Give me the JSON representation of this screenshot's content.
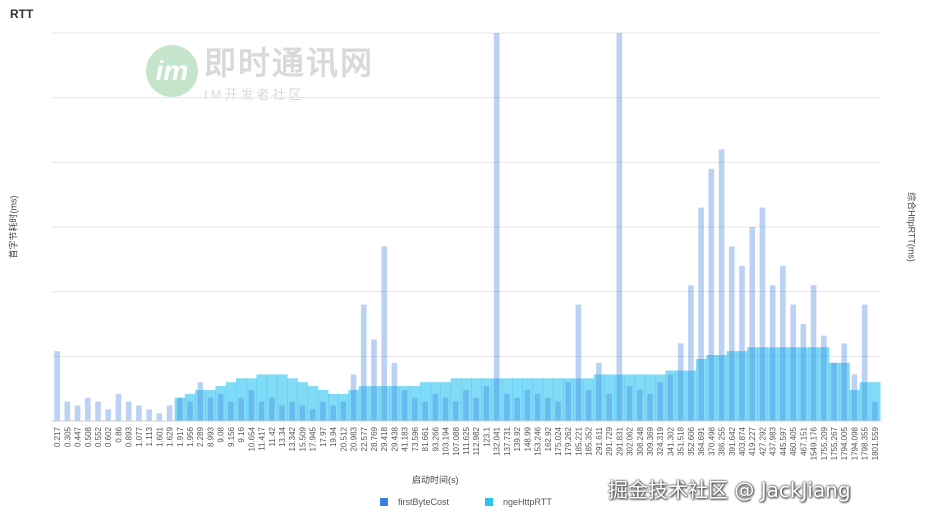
{
  "watermark_top": {
    "name": "即时通讯网",
    "sub": "IM开发者社区"
  },
  "watermark_bottom": "掘金技术社区 @ JackJiang",
  "chart_data": {
    "type": "bar",
    "title": "RTT",
    "ylabel_left": "首字节耗时(ms)",
    "ylabel_right": "综合HttpRTT(ms)",
    "xlabel": "启动时间(s)",
    "legend_position": "bottom",
    "grid": true,
    "x_tick_labels": [
      "0.217",
      "0.305",
      "0.447",
      "0.508",
      "0.552",
      "0.602",
      "0.86",
      "0.893",
      "1.077",
      "1.113",
      "1.601",
      "1.629",
      "1.917",
      "1.956",
      "2.289",
      "8.993",
      "9.08",
      "9.156",
      "9.16",
      "10.654",
      "11.417",
      "11.42",
      "13.34",
      "13.342",
      "15.509",
      "17.945",
      "17.97",
      "19.94",
      "20.512",
      "20.983",
      "22.577",
      "28.769",
      "29.418",
      "29.438",
      "41.183",
      "73.596",
      "81.661",
      "93.266",
      "103.194",
      "107.088",
      "111.625",
      "112.982",
      "123.1",
      "132.041",
      "137.731",
      "139.92",
      "148.99",
      "153.246",
      "162.92",
      "175.024",
      "179.262",
      "185.221",
      "185.352",
      "291.611",
      "291.729",
      "291.831",
      "302.062",
      "308.248",
      "309.369",
      "324.319",
      "341.302",
      "351.518",
      "352.606",
      "364.691",
      "370.498",
      "386.255",
      "391.642",
      "403.874",
      "419.227",
      "427.292",
      "437.983",
      "445.597",
      "460.405",
      "467.151",
      "1549.176",
      "1755.209",
      "1755.267",
      "1794.005",
      "1794.098",
      "1798.355",
      "1801.559"
    ],
    "series": [
      {
        "name": "firstByteCost",
        "color": "#3d7fe0",
        "values": [
          0.18,
          0.05,
          0.04,
          0.06,
          0.05,
          0.03,
          0.07,
          0.05,
          0.04,
          0.03,
          0.02,
          0.04,
          0.06,
          0.05,
          0.1,
          0.06,
          0.07,
          0.05,
          0.06,
          0.08,
          0.05,
          0.06,
          0.04,
          0.05,
          0.04,
          0.03,
          0.05,
          0.04,
          0.05,
          0.12,
          0.3,
          0.21,
          0.45,
          0.15,
          0.08,
          0.06,
          0.05,
          0.07,
          0.06,
          0.05,
          0.08,
          0.06,
          0.09,
          1.0,
          0.07,
          0.06,
          0.08,
          0.07,
          0.06,
          0.05,
          0.1,
          0.3,
          0.08,
          0.15,
          0.07,
          1.0,
          0.09,
          0.08,
          0.07,
          0.1,
          0.12,
          0.2,
          0.35,
          0.55,
          0.65,
          0.7,
          0.45,
          0.4,
          0.5,
          0.55,
          0.35,
          0.4,
          0.3,
          0.25,
          0.35,
          0.22,
          0.15,
          0.2,
          0.12,
          0.3,
          0.05
        ]
      },
      {
        "name": "ngeHttpRTT",
        "color": "#2dc3f0",
        "values": [
          0,
          0,
          0,
          0,
          0,
          0,
          0,
          0,
          0,
          0,
          0,
          0,
          0.06,
          0.07,
          0.08,
          0.08,
          0.09,
          0.1,
          0.11,
          0.11,
          0.12,
          0.12,
          0.12,
          0.11,
          0.1,
          0.09,
          0.08,
          0.07,
          0.07,
          0.08,
          0.09,
          0.09,
          0.09,
          0.09,
          0.09,
          0.09,
          0.1,
          0.1,
          0.1,
          0.11,
          0.11,
          0.11,
          0.11,
          0.11,
          0.11,
          0.11,
          0.11,
          0.11,
          0.11,
          0.11,
          0.11,
          0.11,
          0.11,
          0.12,
          0.12,
          0.12,
          0.12,
          0.12,
          0.12,
          0.12,
          0.13,
          0.13,
          0.13,
          0.16,
          0.17,
          0.17,
          0.18,
          0.18,
          0.19,
          0.19,
          0.19,
          0.19,
          0.19,
          0.19,
          0.19,
          0.19,
          0.15,
          0.15,
          0.08,
          0.1,
          0.1
        ]
      }
    ]
  }
}
